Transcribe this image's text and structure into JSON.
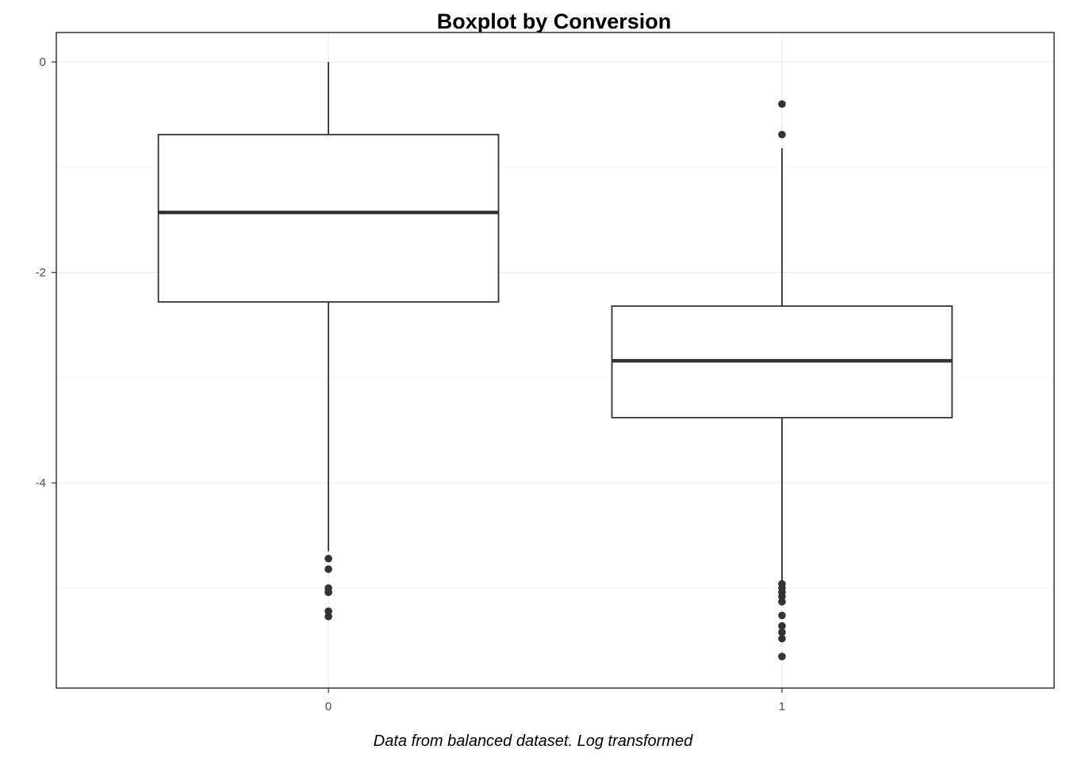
{
  "chart_data": {
    "type": "boxplot",
    "title": "Boxplot by Conversion",
    "caption": "Data from balanced dataset. Log transformed",
    "xlabel": "",
    "ylabel": "",
    "categories": [
      "0",
      "1"
    ],
    "ylim": [
      -5.95,
      0.28
    ],
    "yticks": [
      0,
      -2,
      -4
    ],
    "ytick_labels": [
      "0",
      "-2",
      "-4"
    ],
    "grid": true,
    "boxes": [
      {
        "category": "0",
        "whisker_high": 0.0,
        "q3": -0.69,
        "median": -1.43,
        "q1": -2.28,
        "whisker_low": -4.65,
        "outliers": [
          -4.72,
          -4.82,
          -5.0,
          -5.04,
          -5.22,
          -5.27
        ]
      },
      {
        "category": "1",
        "whisker_high": -0.82,
        "q3": -2.32,
        "median": -2.84,
        "q1": -3.38,
        "whisker_low": -4.93,
        "outliers": [
          -0.4,
          -0.69,
          -4.96,
          -5.0,
          -5.04,
          -5.08,
          -5.13,
          -5.26,
          -5.36,
          -5.42,
          -5.48,
          -5.65
        ]
      }
    ],
    "colors": {
      "box_stroke": "#333333",
      "box_fill": "#ffffff",
      "grid": "#ebebeb",
      "panel_border": "#333333"
    }
  }
}
